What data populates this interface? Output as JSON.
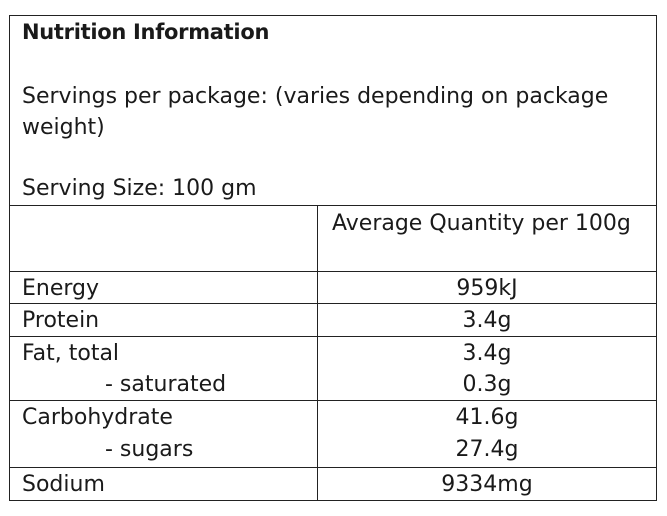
{
  "panel": {
    "title": "Nutrition Information",
    "servings_per_package": "Servings per package: (varies depending on package weight)",
    "serving_size": "Serving Size: 100 gm",
    "column_header": "Average Quantity per 100g"
  },
  "rows": {
    "energy": {
      "label": "Energy",
      "value": "959kJ"
    },
    "protein": {
      "label": "Protein",
      "value": "3.4g"
    },
    "fat_total": {
      "label": "Fat, total",
      "value": "3.4g"
    },
    "saturated": {
      "label": "- saturated",
      "value": "0.3g"
    },
    "carbohydrate": {
      "label": "Carbohydrate",
      "value": "41.6g"
    },
    "sugars": {
      "label": "- sugars",
      "value": "27.4g"
    },
    "sodium": {
      "label": "Sodium",
      "value": "9334mg"
    }
  }
}
